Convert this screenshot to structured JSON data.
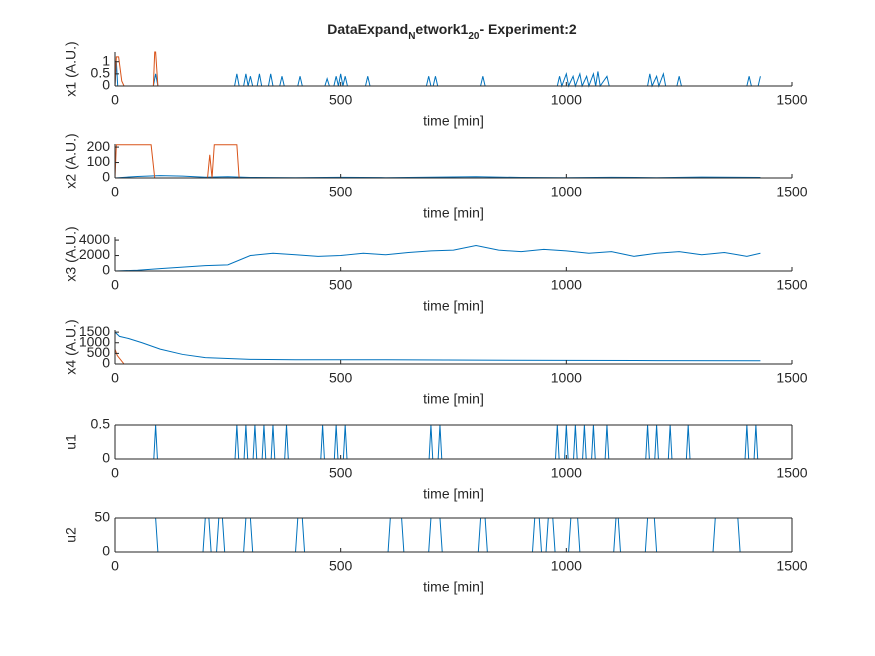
{
  "title": [
    "DataExpand",
    "N",
    "etwork1",
    "20",
    "- Experiment:2"
  ],
  "chart_data": [
    {
      "type": "line",
      "xlabel": "time [min]",
      "ylabel": "x1 (A.U.)",
      "xlim": [
        0,
        1500
      ],
      "xticks": [
        0,
        500,
        1000,
        1500
      ],
      "ylim": [
        0,
        1.4
      ],
      "yticks": [
        0,
        0.5,
        1
      ],
      "box": false,
      "series": [
        {
          "color": "#0072bd",
          "x": [
            0,
            3,
            6,
            85,
            90,
            95,
            265,
            270,
            275,
            285,
            290,
            295,
            300,
            305,
            315,
            320,
            325,
            340,
            345,
            350,
            365,
            370,
            375,
            405,
            410,
            415,
            465,
            470,
            475,
            485,
            490,
            495,
            500,
            505,
            510,
            515,
            555,
            560,
            565,
            690,
            695,
            700,
            705,
            710,
            715,
            810,
            815,
            820,
            980,
            985,
            990,
            1000,
            1005,
            1015,
            1020,
            1030,
            1035,
            1045,
            1050,
            1060,
            1065,
            1070,
            1075,
            1090,
            1095,
            1180,
            1185,
            1190,
            1200,
            1205,
            1215,
            1220,
            1245,
            1250,
            1255,
            1400,
            1405,
            1410,
            1425,
            1430
          ],
          "values": [
            0,
            1,
            0,
            0,
            0.5,
            0,
            0,
            0.5,
            0,
            0,
            0.5,
            0,
            0.4,
            0,
            0,
            0.5,
            0,
            0,
            0.5,
            0,
            0,
            0.4,
            0,
            0,
            0.4,
            0,
            0,
            0.3,
            0,
            0,
            0.4,
            0,
            0.5,
            0,
            0.4,
            0,
            0,
            0.4,
            0,
            0,
            0.4,
            0,
            0,
            0.4,
            0,
            0,
            0.4,
            0,
            0,
            0.4,
            0,
            0.5,
            0,
            0.4,
            0,
            0.5,
            0,
            0.4,
            0,
            0.5,
            0,
            0.6,
            0,
            0.4,
            0,
            0,
            0.5,
            0,
            0.4,
            0,
            0.5,
            0,
            0,
            0.4,
            0,
            0,
            0.4,
            0,
            0,
            0.4
          ]
        },
        {
          "color": "#d95319",
          "x": [
            0,
            3,
            8,
            15,
            20,
            85,
            88,
            90,
            95,
            270
          ],
          "values": [
            0,
            1.2,
            1.2,
            0.2,
            0,
            0,
            1.4,
            1.4,
            0,
            0
          ]
        }
      ]
    },
    {
      "type": "line",
      "xlabel": "time [min]",
      "ylabel": "x2 (A.U.)",
      "xlim": [
        0,
        1500
      ],
      "xticks": [
        0,
        500,
        1000,
        1500
      ],
      "ylim": [
        0,
        220
      ],
      "yticks": [
        0,
        100,
        200
      ],
      "box": false,
      "series": [
        {
          "color": "#0072bd",
          "x": [
            0,
            50,
            100,
            150,
            200,
            250,
            300,
            400,
            500,
            600,
            700,
            800,
            900,
            1000,
            1100,
            1200,
            1300,
            1430
          ],
          "values": [
            0,
            10,
            15,
            12,
            5,
            8,
            3,
            2,
            4,
            2,
            5,
            8,
            3,
            2,
            4,
            2,
            6,
            3
          ]
        },
        {
          "color": "#d95319",
          "x": [
            0,
            3,
            80,
            88,
            205,
            210,
            215,
            220,
            270,
            275
          ],
          "values": [
            0,
            215,
            215,
            0,
            0,
            150,
            0,
            215,
            215,
            0
          ]
        }
      ]
    },
    {
      "type": "line",
      "xlabel": "time [min]",
      "ylabel": "x3 (A.U.)",
      "xlim": [
        0,
        1500
      ],
      "xticks": [
        0,
        500,
        1000,
        1500
      ],
      "ylim": [
        0,
        4400
      ],
      "yticks": [
        0,
        2000,
        4000
      ],
      "box": false,
      "series": [
        {
          "color": "#0072bd",
          "x": [
            0,
            50,
            100,
            150,
            200,
            250,
            300,
            350,
            400,
            450,
            500,
            550,
            600,
            650,
            700,
            750,
            800,
            850,
            900,
            950,
            1000,
            1050,
            1100,
            1150,
            1200,
            1250,
            1300,
            1350,
            1400,
            1430
          ],
          "values": [
            0,
            100,
            300,
            500,
            700,
            800,
            2000,
            2300,
            2100,
            1900,
            2000,
            2300,
            2100,
            2400,
            2600,
            2700,
            3300,
            2700,
            2500,
            2800,
            2600,
            2300,
            2500,
            1900,
            2300,
            2500,
            2100,
            2400,
            1900,
            2300
          ]
        },
        {
          "color": "#d95319",
          "x": [
            0,
            100,
            200,
            270
          ],
          "values": [
            0,
            0,
            0,
            0
          ]
        }
      ]
    },
    {
      "type": "line",
      "xlabel": "time [min]",
      "ylabel": "x4 (A.U.)",
      "xlim": [
        0,
        1500
      ],
      "xticks": [
        0,
        500,
        1000,
        1500
      ],
      "ylim": [
        0,
        1600
      ],
      "yticks": [
        0,
        500,
        1000,
        1500
      ],
      "box": false,
      "series": [
        {
          "color": "#0072bd",
          "x": [
            0,
            10,
            30,
            60,
            100,
            150,
            200,
            300,
            400,
            600,
            800,
            1000,
            1200,
            1430
          ],
          "values": [
            1500,
            1300,
            1200,
            1000,
            700,
            450,
            300,
            220,
            200,
            200,
            180,
            170,
            160,
            150
          ]
        },
        {
          "color": "#d95319",
          "x": [
            0,
            5,
            20,
            270
          ],
          "values": [
            700,
            400,
            0,
            0
          ]
        }
      ]
    },
    {
      "type": "line",
      "xlabel": "time [min]",
      "ylabel": "u1",
      "xlim": [
        0,
        1500
      ],
      "xticks": [
        0,
        500,
        1000,
        1500
      ],
      "ylim": [
        0,
        0.5
      ],
      "yticks": [
        0,
        0.5
      ],
      "box": true,
      "series": [
        {
          "color": "#0072bd",
          "x": [
            0,
            86,
            90,
            94,
            266,
            270,
            274,
            286,
            290,
            294,
            306,
            310,
            314,
            326,
            330,
            334,
            346,
            350,
            354,
            376,
            380,
            384,
            456,
            460,
            464,
            486,
            490,
            494,
            506,
            510,
            514,
            696,
            700,
            704,
            716,
            720,
            724,
            976,
            980,
            984,
            996,
            1000,
            1004,
            1016,
            1020,
            1024,
            1036,
            1040,
            1044,
            1056,
            1060,
            1064,
            1086,
            1090,
            1094,
            1176,
            1180,
            1184,
            1196,
            1200,
            1204,
            1226,
            1230,
            1234,
            1266,
            1270,
            1274,
            1396,
            1400,
            1404,
            1416,
            1420,
            1424,
            1430
          ],
          "values": [
            0,
            0,
            0.5,
            0,
            0,
            0.5,
            0,
            0,
            0.5,
            0,
            0,
            0.5,
            0,
            0,
            0.5,
            0,
            0,
            0.5,
            0,
            0,
            0.5,
            0,
            0,
            0.5,
            0,
            0,
            0.5,
            0,
            0,
            0.5,
            0,
            0,
            0.5,
            0,
            0,
            0.5,
            0,
            0,
            0.5,
            0,
            0,
            0.5,
            0,
            0,
            0.5,
            0,
            0,
            0.5,
            0,
            0,
            0.5,
            0,
            0,
            0.5,
            0,
            0,
            0.5,
            0,
            0,
            0.5,
            0,
            0,
            0.5,
            0,
            0,
            0.5,
            0,
            0,
            0.5,
            0,
            0,
            0.5,
            0,
            0
          ]
        }
      ]
    },
    {
      "type": "line",
      "xlabel": "time [min]",
      "ylabel": "u2",
      "xlim": [
        0,
        1500
      ],
      "xticks": [
        0,
        500,
        1000,
        1500
      ],
      "ylim": [
        0,
        50
      ],
      "yticks": [
        0,
        50
      ],
      "box": true,
      "series": [
        {
          "color": "#0072bd",
          "x": [
            0,
            90,
            95,
            195,
            200,
            208,
            213,
            225,
            230,
            238,
            243,
            285,
            290,
            300,
            305,
            400,
            405,
            415,
            420,
            605,
            610,
            635,
            640,
            695,
            700,
            720,
            725,
            805,
            810,
            820,
            825,
            925,
            930,
            940,
            945,
            955,
            960,
            970,
            975,
            1005,
            1010,
            1025,
            1030,
            1105,
            1110,
            1115,
            1120,
            1175,
            1180,
            1195,
            1200,
            1325,
            1330,
            1380,
            1385,
            1430
          ],
          "values": [
            50,
            50,
            0,
            0,
            50,
            50,
            0,
            0,
            50,
            50,
            0,
            0,
            50,
            50,
            0,
            0,
            50,
            50,
            0,
            0,
            50,
            50,
            0,
            0,
            50,
            50,
            0,
            0,
            50,
            50,
            0,
            0,
            50,
            50,
            0,
            0,
            50,
            50,
            0,
            0,
            50,
            50,
            0,
            0,
            50,
            50,
            0,
            0,
            50,
            50,
            0,
            0,
            50,
            50,
            0,
            0
          ]
        }
      ]
    }
  ]
}
